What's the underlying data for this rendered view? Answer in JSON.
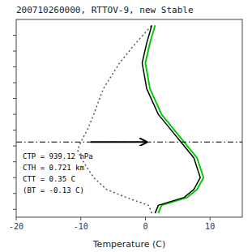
{
  "chart_data": {
    "type": "line",
    "title": "200710260000, RTTOV-9, new Stable",
    "x_label": "Temperature (C)",
    "xlim": [
      -20,
      15
    ],
    "ylim": [
      0.0,
      1.0
    ],
    "xticks": [
      -20,
      -10,
      0,
      10
    ],
    "yticks": [
      0.04,
      0.12,
      0.2,
      0.28,
      0.36,
      0.44,
      0.52,
      0.6,
      0.68,
      0.76,
      0.84,
      0.92
    ],
    "tick_labels": "x",
    "series": [
      {
        "color": "#000000",
        "line_style": "solid",
        "x": [
          1.5,
          2.0,
          6.0,
          7.5,
          8.5,
          8.0,
          7.5,
          6.5,
          5.5,
          4.0,
          2.0,
          0.2,
          -0.5,
          0.2,
          1.0
        ],
        "values": [
          0.02,
          0.06,
          0.1,
          0.14,
          0.2,
          0.25,
          0.3,
          0.34,
          0.38,
          0.44,
          0.52,
          0.65,
          0.78,
          0.88,
          0.97
        ]
      },
      {
        "color": "#00cc00",
        "line_style": "solid",
        "x": [
          2.0,
          2.5,
          6.5,
          8.0,
          9.0,
          8.5,
          8.0,
          7.0,
          6.0,
          4.5,
          2.5,
          0.7,
          0.0,
          0.7,
          1.5
        ],
        "values": [
          0.02,
          0.06,
          0.1,
          0.14,
          0.2,
          0.25,
          0.3,
          0.34,
          0.38,
          0.44,
          0.52,
          0.65,
          0.78,
          0.88,
          0.97
        ]
      },
      {
        "color": "#555555",
        "line_style": "dotted",
        "x": [
          1.0,
          0.5,
          -3.0,
          -6.0,
          -8.0,
          -9.0,
          -10.0,
          -10.5,
          -10.0,
          -9.0,
          -8.0,
          -6.5,
          -4.0,
          -1.5,
          1.0
        ],
        "values": [
          0.02,
          0.06,
          0.1,
          0.14,
          0.2,
          0.25,
          0.3,
          0.34,
          0.38,
          0.44,
          0.52,
          0.65,
          0.78,
          0.88,
          0.97
        ]
      }
    ],
    "reference_line": {
      "y": 0.38,
      "line_style": "dashdot"
    },
    "arrow": {
      "x_start": -8.5,
      "x_end": 0.2,
      "y": 0.38
    },
    "annotation": {
      "lines": [
        "CTP = 939.12 hPa",
        "CTH = 0.721 km",
        "CTT = 0.35 C",
        "(BT = -0.13 C)"
      ],
      "x": -19,
      "y": 0.33
    }
  }
}
